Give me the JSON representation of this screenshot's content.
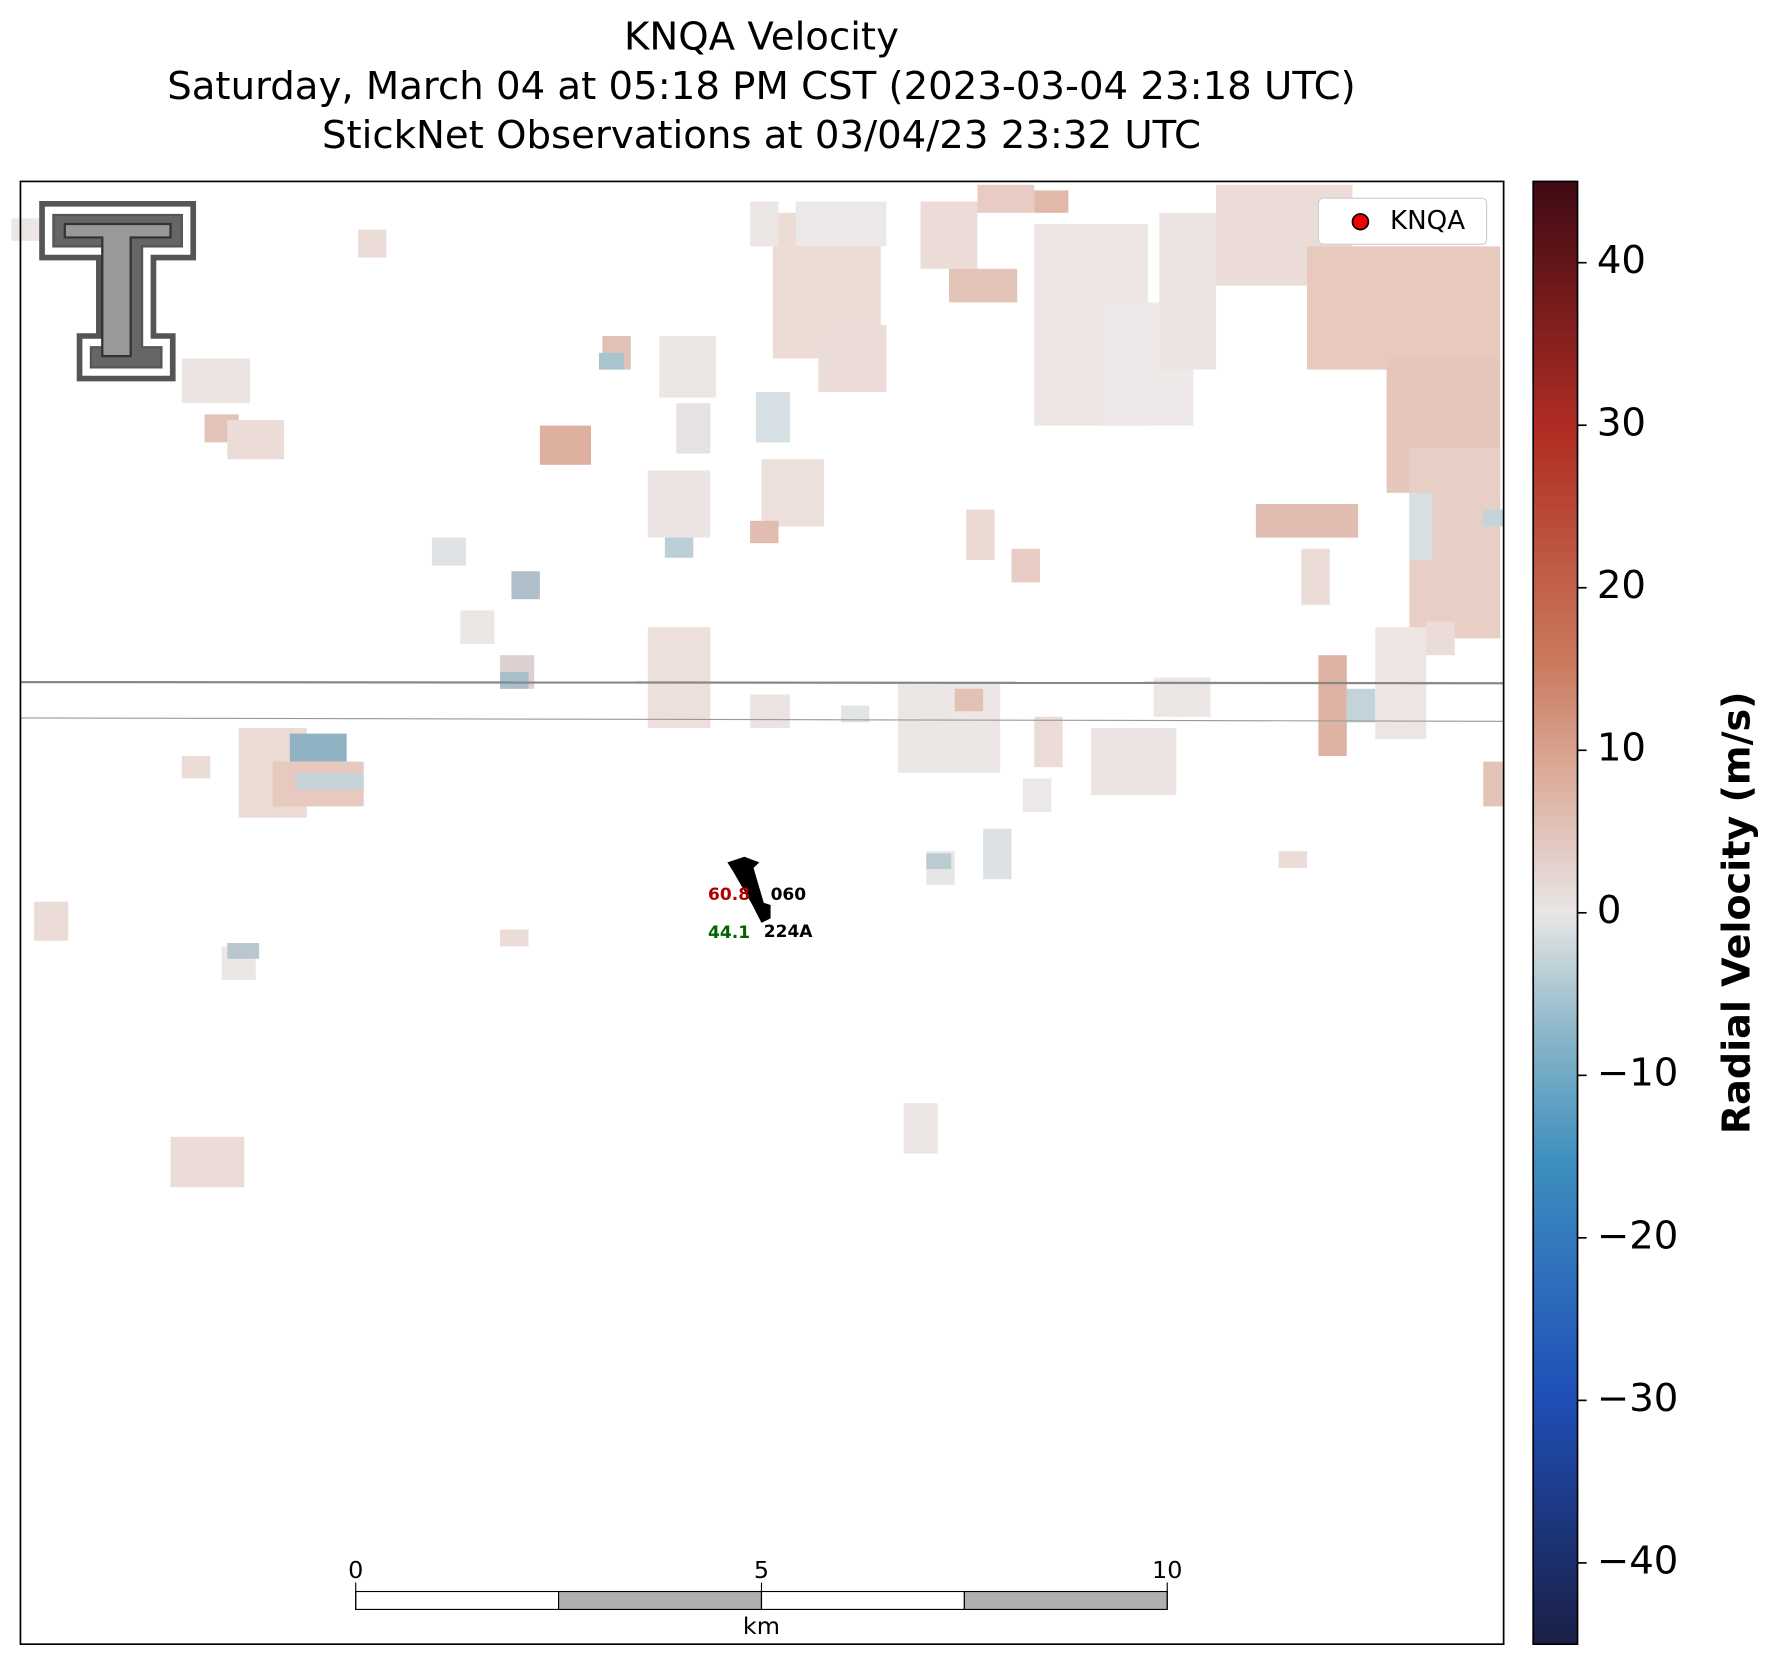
{
  "title": [
    "KNQA Velocity",
    "Saturday, March 04 at 05:18 PM CST (2023-03-04 23:18 UTC)",
    "StickNet Observations at 03/04/23 23:32 UTC"
  ],
  "legend": "KNQA",
  "station": {
    "id": "224A",
    "direction": "060",
    "temperature": 60.8,
    "dewpoint": 44.1
  },
  "colorbar": {
    "label": "Radial Velocity (m/s)",
    "lim": [
      -45,
      45
    ],
    "ticks": [
      40,
      30,
      20,
      10,
      0,
      {
        "value": -10,
        "label": "−10"
      },
      {
        "value": -20,
        "label": "−20"
      },
      {
        "value": -30,
        "label": "−30"
      },
      {
        "value": -40,
        "label": "−40"
      }
    ]
  },
  "scalebar": {
    "unit": "km",
    "lim": [
      0,
      10
    ],
    "ticks": [
      0,
      5,
      10
    ]
  }
}
